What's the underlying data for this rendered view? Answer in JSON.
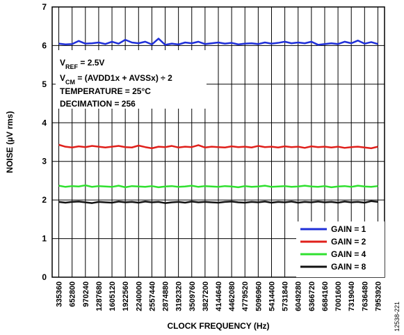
{
  "chart_data": {
    "type": "line",
    "x_label": "CLOCK FREQUENCY (Hz)",
    "y_label": "NOISE (µV rms)",
    "figure_id": "12538-221",
    "annotations": [
      [
        "V",
        "REF",
        " = 2.5V"
      ],
      [
        "V",
        "CM",
        " = (AVDD1x + AVSSx) ÷ 2"
      ],
      [
        "TEMPERATURE = 25°C"
      ],
      [
        "DECIMATION = 256"
      ]
    ],
    "x": [
      335360,
      494080,
      652800,
      811520,
      970240,
      1128960,
      1287680,
      1446400,
      1605120,
      1763840,
      1922560,
      2081280,
      2240000,
      2398720,
      2557440,
      2716160,
      2874880,
      3033600,
      3192320,
      3351040,
      3509760,
      3668480,
      3827200,
      3985920,
      4144640,
      4303360,
      4462080,
      4620800,
      4779520,
      4938240,
      5096960,
      5255680,
      5414400,
      5573120,
      5731840,
      5890560,
      6049280,
      6208000,
      6366720,
      6525440,
      6684160,
      6842880,
      7001600,
      7160320,
      7319040,
      7477760,
      7636480,
      7795200,
      7953920
    ],
    "series": [
      {
        "name": "GAIN = 1",
        "color": "#1f2fd8",
        "values": [
          6.05,
          6.03,
          6.04,
          6.12,
          6.05,
          6.06,
          6.08,
          6.04,
          6.1,
          6.05,
          6.15,
          6.08,
          6.06,
          6.1,
          6.03,
          6.18,
          6.02,
          6.05,
          6.03,
          6.08,
          6.06,
          6.1,
          6.04,
          6.06,
          6.08,
          6.05,
          6.07,
          6.03,
          6.05,
          6.06,
          6.04,
          6.08,
          6.05,
          6.07,
          6.1,
          6.06,
          6.08,
          6.06,
          6.1,
          6.02,
          6.04,
          6.06,
          6.04,
          6.1,
          6.06,
          6.13,
          6.05,
          6.09,
          6.04
        ]
      },
      {
        "name": "GAIN = 2",
        "color": "#e0201b",
        "values": [
          3.43,
          3.38,
          3.36,
          3.39,
          3.37,
          3.4,
          3.38,
          3.36,
          3.38,
          3.4,
          3.37,
          3.36,
          3.41,
          3.37,
          3.34,
          3.38,
          3.37,
          3.4,
          3.36,
          3.38,
          3.37,
          3.42,
          3.36,
          3.38,
          3.37,
          3.36,
          3.39,
          3.37,
          3.38,
          3.36,
          3.4,
          3.37,
          3.38,
          3.36,
          3.39,
          3.37,
          3.38,
          3.35,
          3.39,
          3.37,
          3.38,
          3.36,
          3.38,
          3.35,
          3.37,
          3.38,
          3.36,
          3.34,
          3.38
        ]
      },
      {
        "name": "GAIN = 4",
        "color": "#2fe02f",
        "values": [
          2.37,
          2.34,
          2.36,
          2.35,
          2.38,
          2.34,
          2.36,
          2.35,
          2.34,
          2.37,
          2.33,
          2.36,
          2.35,
          2.34,
          2.36,
          2.33,
          2.35,
          2.36,
          2.34,
          2.35,
          2.37,
          2.34,
          2.36,
          2.35,
          2.34,
          2.36,
          2.35,
          2.33,
          2.36,
          2.34,
          2.35,
          2.37,
          2.34,
          2.35,
          2.36,
          2.34,
          2.35,
          2.37,
          2.35,
          2.34,
          2.36,
          2.33,
          2.35,
          2.36,
          2.34,
          2.37,
          2.35,
          2.34,
          2.36
        ]
      },
      {
        "name": "GAIN = 8",
        "color": "#111111",
        "values": [
          1.95,
          1.93,
          1.95,
          1.96,
          1.94,
          1.92,
          1.95,
          1.94,
          1.93,
          1.96,
          1.94,
          1.95,
          1.93,
          1.96,
          1.94,
          1.95,
          1.92,
          1.94,
          1.95,
          1.93,
          1.96,
          1.94,
          1.95,
          1.94,
          1.93,
          1.95,
          1.96,
          1.94,
          1.93,
          1.95,
          1.94,
          1.96,
          1.93,
          1.95,
          1.94,
          1.96,
          1.93,
          1.95,
          1.94,
          1.96,
          1.94,
          1.95,
          1.93,
          1.96,
          1.94,
          1.95,
          1.93,
          1.97,
          1.95
        ]
      }
    ],
    "xlim": [
      176640,
      8112640
    ],
    "xticks": [
      335360,
      652800,
      970240,
      1287680,
      1605120,
      1922560,
      2240000,
      2557440,
      2874880,
      3192320,
      3509760,
      3827200,
      4144640,
      4462080,
      4779520,
      5096960,
      5414400,
      5731840,
      6049280,
      6366720,
      6684160,
      7001600,
      7319040,
      7636480,
      7953920
    ],
    "ylim": [
      0,
      7
    ],
    "yticks": [
      0,
      1,
      2,
      3,
      4,
      5,
      6,
      7
    ],
    "grid": true,
    "legend": "lower right"
  }
}
